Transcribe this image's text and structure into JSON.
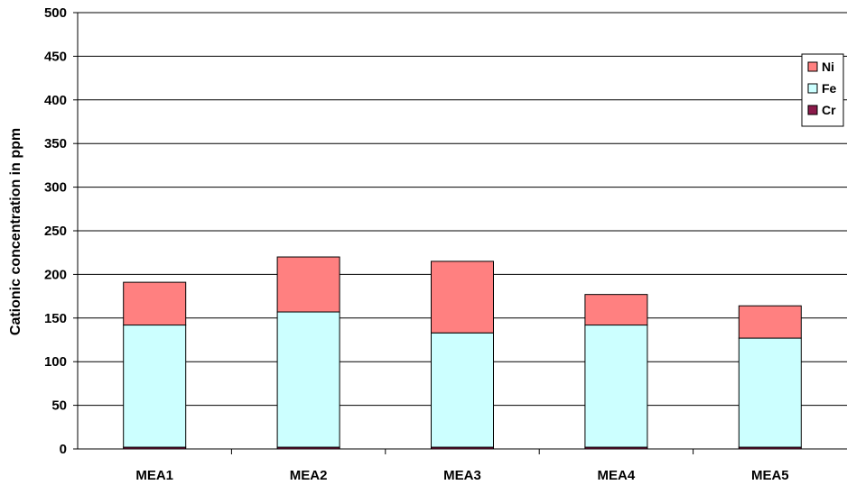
{
  "chart_data": {
    "type": "bar",
    "stacked": true,
    "title": "",
    "xlabel": "",
    "ylabel": "Cationic concentration in ppm",
    "ylim": [
      0,
      500
    ],
    "yticks": [
      0,
      50,
      100,
      150,
      200,
      250,
      300,
      350,
      400,
      450,
      500
    ],
    "categories": [
      "MEA1",
      "MEA2",
      "MEA3",
      "MEA4",
      "MEA5"
    ],
    "series": [
      {
        "name": "Cr",
        "color": "#8B1A4A",
        "values": [
          2,
          2,
          2,
          2,
          2
        ]
      },
      {
        "name": "Fe",
        "color": "#CCFFFF",
        "values": [
          140,
          155,
          131,
          140,
          125
        ]
      },
      {
        "name": "Ni",
        "color": "#FF8080",
        "values": [
          49,
          63,
          82,
          35,
          37
        ]
      }
    ],
    "legend_order": [
      "Ni",
      "Fe",
      "Cr"
    ],
    "legend_position": "top-right",
    "grid": true
  }
}
